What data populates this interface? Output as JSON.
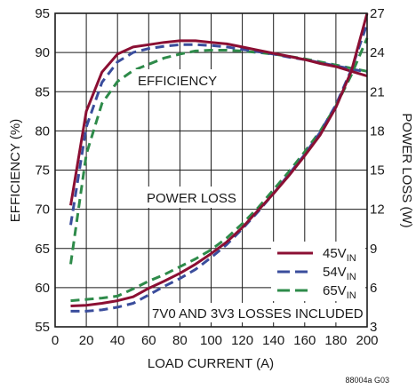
{
  "chart_data": {
    "type": "line",
    "xlabel": "LOAD CURRENT (A)",
    "ylabel_left": "EFFICIENCY (%)",
    "ylabel_right": "POWER LOSS (W)",
    "xlim": [
      0,
      200
    ],
    "ylim_left": [
      55,
      95
    ],
    "ylim_right": [
      3,
      27
    ],
    "x_ticks": [
      "0",
      "20",
      "40",
      "60",
      "80",
      "100",
      "120",
      "140",
      "160",
      "180",
      "200"
    ],
    "y_ticks_left": [
      "55",
      "60",
      "65",
      "70",
      "75",
      "80",
      "85",
      "90",
      "95"
    ],
    "y_ticks_right": [
      "3",
      "6",
      "9",
      "12",
      "15",
      "18",
      "21",
      "24",
      "27"
    ],
    "grid": true,
    "annotations": {
      "efficiency": "EFFICIENCY",
      "power_loss": "POWER LOSS",
      "note": "7V0 AND 3V3 LOSSES INCLUDED",
      "code": "88004a G03"
    },
    "legend": {
      "placement": "lower-right",
      "entries": [
        {
          "main": "45V",
          "sub": "IN",
          "color": "#8b0f33",
          "style": "solid"
        },
        {
          "main": "54V",
          "sub": "IN",
          "color": "#3a4d9c",
          "style": "dashed"
        },
        {
          "main": "65V",
          "sub": "IN",
          "color": "#2e8b4a",
          "style": "dashed"
        }
      ]
    },
    "series": [
      {
        "name": "45V_IN efficiency",
        "axis": "left",
        "color": "#8b0f33",
        "style": "solid",
        "x": [
          10,
          20,
          30,
          40,
          50,
          60,
          70,
          80,
          90,
          100,
          110,
          120,
          130,
          140,
          150,
          160,
          170,
          180,
          190,
          200
        ],
        "y": [
          70.5,
          82.5,
          87.5,
          89.8,
          90.7,
          91.0,
          91.3,
          91.5,
          91.5,
          91.3,
          91.1,
          90.7,
          90.3,
          89.9,
          89.5,
          89.1,
          88.6,
          88.2,
          87.6,
          87.0
        ]
      },
      {
        "name": "54V_IN efficiency",
        "axis": "left",
        "color": "#3a4d9c",
        "style": "dashed",
        "x": [
          10,
          20,
          30,
          40,
          50,
          60,
          70,
          80,
          90,
          100,
          110,
          120,
          130,
          140,
          150,
          160,
          170,
          180,
          190,
          200
        ],
        "y": [
          68.0,
          80.5,
          86.2,
          88.8,
          90.0,
          90.5,
          90.8,
          91.0,
          91.0,
          90.9,
          90.7,
          90.4,
          90.1,
          89.8,
          89.4,
          89.1,
          88.7,
          88.3,
          87.9,
          87.5
        ]
      },
      {
        "name": "65V_IN efficiency",
        "axis": "left",
        "color": "#2e8b4a",
        "style": "dashed",
        "x": [
          10,
          20,
          30,
          40,
          50,
          60,
          70,
          80,
          90,
          100,
          110,
          120,
          130,
          140,
          150,
          160,
          170,
          180,
          190,
          200
        ],
        "y": [
          63.0,
          77.0,
          83.5,
          86.3,
          87.7,
          88.5,
          89.3,
          89.8,
          90.2,
          90.3,
          90.3,
          90.2,
          90.0,
          89.8,
          89.5,
          89.2,
          88.8,
          88.4,
          88.0,
          87.6
        ]
      },
      {
        "name": "45V_IN power loss",
        "axis": "right",
        "color": "#8b0f33",
        "style": "solid",
        "x": [
          10,
          20,
          30,
          40,
          50,
          60,
          70,
          80,
          90,
          100,
          110,
          120,
          130,
          140,
          150,
          160,
          170,
          180,
          190,
          200
        ],
        "y": [
          4.6,
          4.65,
          4.8,
          5.0,
          5.3,
          5.95,
          6.5,
          7.1,
          7.8,
          8.6,
          9.5,
          10.6,
          11.9,
          13.2,
          14.6,
          16.1,
          17.7,
          19.8,
          22.6,
          27.0
        ]
      },
      {
        "name": "54V_IN power loss",
        "axis": "right",
        "color": "#3a4d9c",
        "style": "dashed",
        "x": [
          10,
          20,
          30,
          40,
          50,
          60,
          70,
          80,
          90,
          100,
          110,
          120,
          130,
          140,
          150,
          160,
          170,
          180,
          190,
          200
        ],
        "y": [
          4.2,
          4.2,
          4.3,
          4.5,
          4.8,
          5.45,
          6.1,
          6.7,
          7.4,
          8.3,
          9.3,
          10.5,
          11.8,
          13.2,
          14.7,
          16.2,
          17.9,
          20.0,
          22.7,
          26.2
        ]
      },
      {
        "name": "65V_IN power loss",
        "axis": "right",
        "color": "#2e8b4a",
        "style": "dashed",
        "x": [
          10,
          20,
          30,
          40,
          50,
          60,
          70,
          80,
          90,
          100,
          110,
          120,
          130,
          140,
          150,
          160,
          170,
          180,
          190,
          200
        ],
        "y": [
          5.0,
          5.1,
          5.2,
          5.35,
          5.9,
          6.5,
          7.0,
          7.6,
          8.2,
          8.9,
          9.8,
          10.9,
          12.1,
          13.5,
          14.9,
          16.4,
          18.0,
          19.9,
          22.3,
          25.1
        ]
      }
    ]
  }
}
